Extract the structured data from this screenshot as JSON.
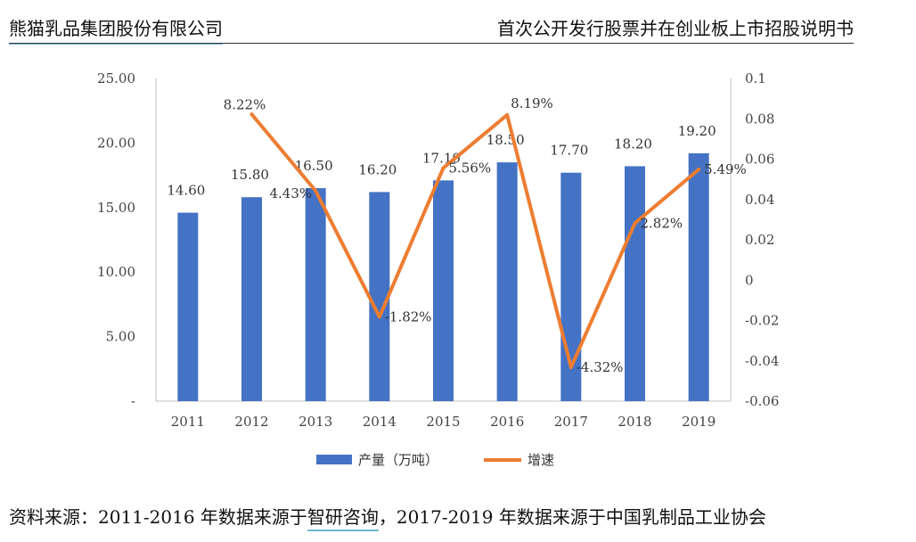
{
  "header": {
    "company": "熊猫乳品集团股份有限公司",
    "document": "首次公开发行股票并在创业板上市招股说明书"
  },
  "source": {
    "prefix": "资料来源：2011-2016 年数据来源于",
    "highlight": "智研咨询",
    "suffix": "，2017-2019 年数据来源于中国乳制品工业协会"
  },
  "colors": {
    "bar": "#4472c4",
    "line": "#ed7d31"
  },
  "chart_data": {
    "type": "bar",
    "categories": [
      "2011",
      "2012",
      "2013",
      "2014",
      "2015",
      "2016",
      "2017",
      "2018",
      "2019"
    ],
    "series": [
      {
        "name": "产量（万吨）",
        "type": "bar",
        "axis": "left",
        "values": [
          14.6,
          15.8,
          16.5,
          16.2,
          17.1,
          18.5,
          17.7,
          18.2,
          19.2
        ],
        "labels": [
          "14.60",
          "15.80",
          "16.50",
          "16.20",
          "17.10",
          "18.50",
          "17.70",
          "18.20",
          "19.20"
        ]
      },
      {
        "name": "增速",
        "type": "line",
        "axis": "right",
        "values": [
          null,
          0.0822,
          0.0443,
          -0.0182,
          0.0556,
          0.0819,
          -0.0432,
          0.0282,
          0.0549
        ],
        "labels": [
          "",
          "8.22%",
          "4.43%",
          "-1.82%",
          "5.56%",
          "8.19%",
          "-4.32%",
          "2.82%",
          "5.49%"
        ]
      }
    ],
    "y_left": {
      "ylim": [
        0,
        25
      ],
      "ticks": [
        0,
        5,
        10,
        15,
        20,
        25
      ],
      "tick_labels": [
        "-",
        "5.00",
        "10.00",
        "15.00",
        "20.00",
        "25.00"
      ]
    },
    "y_right": {
      "ylim": [
        -0.06,
        0.1
      ],
      "ticks": [
        -0.06,
        -0.04,
        -0.02,
        0,
        0.02,
        0.04,
        0.06,
        0.08,
        0.1
      ],
      "tick_labels": [
        "-0.06",
        "-0.04",
        "-0.02",
        "0",
        "0.02",
        "0.04",
        "0.06",
        "0.08",
        "0.1"
      ]
    },
    "grid": false,
    "legend_position": "bottom"
  }
}
